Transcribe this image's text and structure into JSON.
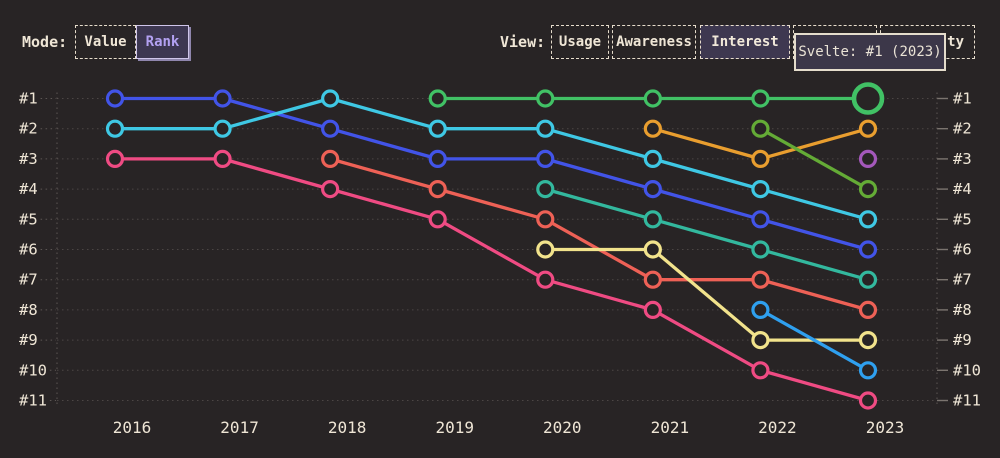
{
  "mode": {
    "label": "Mode:",
    "options": [
      {
        "label": "Value",
        "active": false
      },
      {
        "label": "Rank",
        "active": true
      }
    ]
  },
  "view": {
    "label": "View:",
    "options": [
      {
        "label": "Usage",
        "active": false
      },
      {
        "label": "Awareness",
        "active": false
      },
      {
        "label": "Interest",
        "active": true
      },
      {
        "label": "",
        "note": "button fully hidden behind tooltip"
      },
      {
        "label_visible": "ty"
      }
    ]
  },
  "tooltip": {
    "text": "Svelte: #1 (2023)"
  },
  "chart_data": {
    "type": "line",
    "variant": "bump-rank",
    "title": "",
    "x": [
      "2016",
      "2017",
      "2018",
      "2019",
      "2020",
      "2021",
      "2022",
      "2023"
    ],
    "y_ticks_left": [
      "#1",
      "#2",
      "#3",
      "#4",
      "#5",
      "#6",
      "#7",
      "#8",
      "#9",
      "#10",
      "#11"
    ],
    "y_ticks_right": [
      "#1",
      "#2",
      "#3",
      "#4",
      "#5",
      "#6",
      "#7",
      "#8",
      "#9",
      "#10",
      "#11"
    ],
    "rank_domain": [
      1,
      11
    ],
    "grid": "dotted-horizontal",
    "series": [
      {
        "id": "blue",
        "color": "#4254e8",
        "ranks": [
          1,
          1,
          2,
          3,
          3,
          4,
          5,
          6
        ]
      },
      {
        "id": "pink",
        "color": "#ef4b83",
        "ranks": [
          3,
          3,
          4,
          5,
          7,
          8,
          10,
          11
        ]
      },
      {
        "id": "cyan",
        "color": "#3fc8e4",
        "ranks": [
          2,
          2,
          1,
          2,
          2,
          3,
          4,
          5
        ]
      },
      {
        "id": "red",
        "color": "#ee6156",
        "ranks": [
          null,
          null,
          3,
          4,
          5,
          7,
          7,
          8
        ]
      },
      {
        "id": "yellow",
        "color": "#f2e38c",
        "ranks": [
          null,
          null,
          null,
          null,
          6,
          6,
          9,
          9
        ]
      },
      {
        "id": "teal",
        "color": "#33b89e",
        "ranks": [
          null,
          null,
          null,
          null,
          4,
          5,
          6,
          7
        ]
      },
      {
        "id": "orange",
        "color": "#e99e2f",
        "ranks": [
          null,
          null,
          null,
          null,
          null,
          2,
          3,
          2
        ]
      },
      {
        "id": "azure",
        "color": "#2fa0ef",
        "ranks": [
          null,
          null,
          null,
          null,
          null,
          null,
          8,
          10
        ]
      },
      {
        "id": "lime",
        "color": "#64ab36",
        "ranks": [
          null,
          null,
          null,
          null,
          null,
          null,
          2,
          4
        ]
      },
      {
        "id": "purple",
        "color": "#a458bb",
        "ranks": [
          null,
          null,
          null,
          null,
          null,
          null,
          null,
          3
        ]
      },
      {
        "id": "svelte",
        "color": "#41c165",
        "ranks": [
          null,
          null,
          null,
          1,
          1,
          1,
          1,
          1
        ]
      }
    ],
    "highlight_point": {
      "series": "svelte",
      "x": "2023",
      "rank": 1
    },
    "colors": {
      "background": "#282425",
      "axis_text": "#efe6d6",
      "grid_dots": "#6a6360",
      "tick": "#8a827c"
    }
  }
}
